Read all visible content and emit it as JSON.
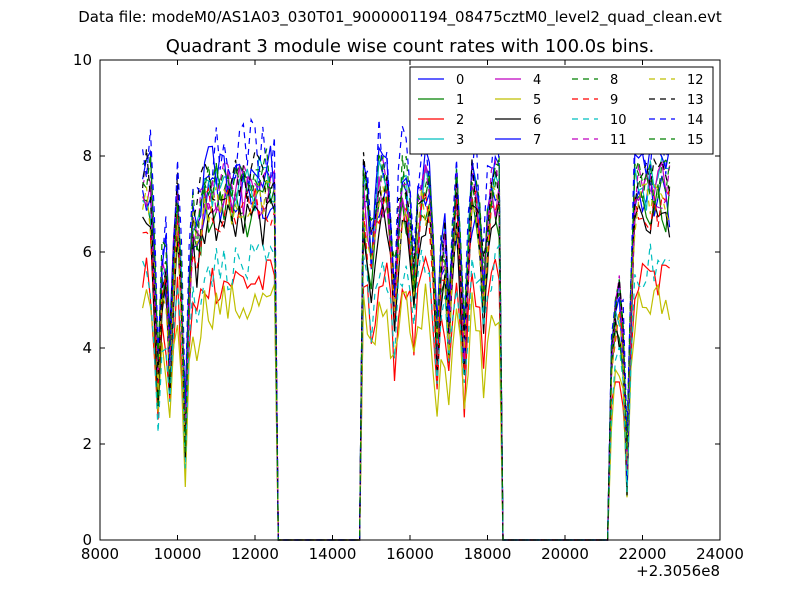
{
  "figure": {
    "suptitle": "Data file: modeM0/AS1A03_030T01_9000001194_08475cztM0_level2_quad_clean.evt"
  },
  "chart_data": {
    "type": "line",
    "title": "Quadrant 3 module wise count rates with 100.0s bins.",
    "xlabel": "",
    "ylabel": "",
    "x_offset_label": "+2.3056e8",
    "xlim": [
      8000,
      24000
    ],
    "ylim": [
      0,
      10
    ],
    "xticks": [
      8000,
      10000,
      12000,
      14000,
      16000,
      18000,
      20000,
      22000,
      24000
    ],
    "yticks": [
      0,
      2,
      4,
      6,
      8,
      10
    ],
    "grid": false,
    "legend_position": "top-right",
    "segments": [
      {
        "start": 9100,
        "end": 12500
      },
      {
        "start": 14800,
        "end": 18300
      },
      {
        "start": 21200,
        "end": 22700
      }
    ],
    "zero_between_gaps": true,
    "series": [
      {
        "name": "0",
        "color": "#0000ff",
        "dash": "solid",
        "mean": 7.1,
        "amplitude": 0.6
      },
      {
        "name": "1",
        "color": "#008000",
        "dash": "solid",
        "mean": 6.9,
        "amplitude": 0.6
      },
      {
        "name": "2",
        "color": "#ff0000",
        "dash": "solid",
        "mean": 5.4,
        "amplitude": 0.5
      },
      {
        "name": "3",
        "color": "#00bfbf",
        "dash": "solid",
        "mean": 7.4,
        "amplitude": 0.6
      },
      {
        "name": "4",
        "color": "#bf00bf",
        "dash": "solid",
        "mean": 7.3,
        "amplitude": 0.6
      },
      {
        "name": "5",
        "color": "#bfbf00",
        "dash": "solid",
        "mean": 4.9,
        "amplitude": 0.5
      },
      {
        "name": "6",
        "color": "#000000",
        "dash": "solid",
        "mean": 6.6,
        "amplitude": 0.5
      },
      {
        "name": "7",
        "color": "#0000ff",
        "dash": "solid",
        "mean": 7.7,
        "amplitude": 0.6
      },
      {
        "name": "8",
        "color": "#008000",
        "dash": "dashed",
        "mean": 7.6,
        "amplitude": 0.6
      },
      {
        "name": "9",
        "color": "#ff0000",
        "dash": "dashed",
        "mean": 6.9,
        "amplitude": 0.5
      },
      {
        "name": "10",
        "color": "#00bfbf",
        "dash": "dashed",
        "mean": 5.7,
        "amplitude": 0.5
      },
      {
        "name": "11",
        "color": "#bf00bf",
        "dash": "dashed",
        "mean": 7.4,
        "amplitude": 0.6
      },
      {
        "name": "12",
        "color": "#bfbf00",
        "dash": "dashed",
        "mean": 7.0,
        "amplitude": 0.5
      },
      {
        "name": "13",
        "color": "#000000",
        "dash": "dashed",
        "mean": 7.6,
        "amplitude": 0.6
      },
      {
        "name": "14",
        "color": "#0000ff",
        "dash": "dashed",
        "mean": 8.2,
        "amplitude": 0.7
      },
      {
        "name": "15",
        "color": "#008000",
        "dash": "dashed",
        "mean": 7.6,
        "amplitude": 0.6
      }
    ]
  }
}
